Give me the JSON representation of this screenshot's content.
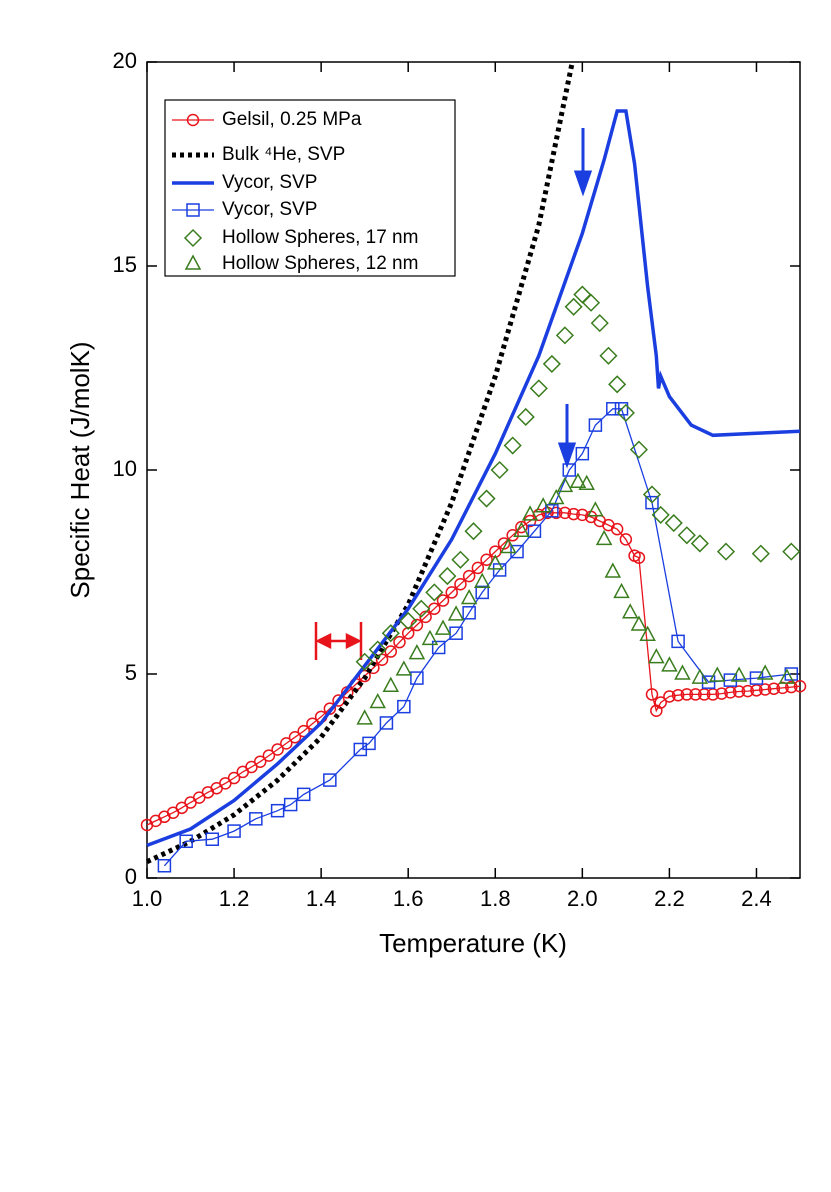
{
  "chart_data": {
    "type": "line",
    "xlabel": "Temperature (K)",
    "ylabel": "Specific Heat  (J/molK)",
    "xlim": [
      1.0,
      2.5
    ],
    "ylim": [
      0,
      20
    ],
    "xticks": [
      {
        "value": 1,
        "label": "1.0"
      },
      1.2,
      1.4,
      1.6,
      1.8,
      {
        "value": 2,
        "label": "2.0"
      },
      2.2,
      2.4
    ],
    "yticks": [
      0,
      5,
      10,
      15,
      20
    ],
    "legend": "upper left",
    "series": [
      {
        "name": "Gelsil, 0.25 MPa",
        "color": "#e8141c",
        "marker": "circle",
        "line": "solid",
        "x": [
          1.0,
          1.02,
          1.04,
          1.06,
          1.08,
          1.1,
          1.12,
          1.14,
          1.16,
          1.18,
          1.2,
          1.22,
          1.24,
          1.26,
          1.28,
          1.3,
          1.32,
          1.34,
          1.36,
          1.38,
          1.4,
          1.42,
          1.44,
          1.46,
          1.48,
          1.5,
          1.52,
          1.54,
          1.56,
          1.58,
          1.6,
          1.62,
          1.64,
          1.66,
          1.68,
          1.7,
          1.72,
          1.74,
          1.76,
          1.78,
          1.8,
          1.82,
          1.84,
          1.86,
          1.88,
          1.9,
          1.92,
          1.94,
          1.96,
          1.98,
          2.0,
          2.02,
          2.04,
          2.06,
          2.08,
          2.1,
          2.12,
          2.13,
          2.16,
          2.17,
          2.18,
          2.2,
          2.22,
          2.24,
          2.26,
          2.28,
          2.3,
          2.32,
          2.34,
          2.36,
          2.38,
          2.4,
          2.42,
          2.44,
          2.46,
          2.48,
          2.5
        ],
        "values": [
          1.3,
          1.4,
          1.5,
          1.6,
          1.72,
          1.85,
          1.97,
          2.1,
          2.2,
          2.32,
          2.45,
          2.6,
          2.72,
          2.85,
          3.0,
          3.15,
          3.3,
          3.45,
          3.6,
          3.78,
          3.95,
          4.15,
          4.35,
          4.55,
          4.75,
          4.95,
          5.15,
          5.35,
          5.55,
          5.78,
          6.0,
          6.2,
          6.4,
          6.6,
          6.8,
          7.0,
          7.2,
          7.4,
          7.6,
          7.8,
          8.0,
          8.2,
          8.4,
          8.6,
          8.75,
          8.9,
          8.95,
          8.95,
          8.95,
          8.92,
          8.9,
          8.85,
          8.75,
          8.65,
          8.55,
          8.3,
          7.9,
          7.85,
          4.5,
          4.1,
          4.3,
          4.45,
          4.48,
          4.5,
          4.5,
          4.5,
          4.5,
          4.52,
          4.55,
          4.57,
          4.58,
          4.6,
          4.62,
          4.64,
          4.66,
          4.68,
          4.7
        ]
      },
      {
        "name": "Bulk ⁴He, SVP",
        "color": "#000000",
        "marker": "none",
        "line": "dotted",
        "x": [
          1.0,
          1.1,
          1.2,
          1.3,
          1.4,
          1.5,
          1.6,
          1.7,
          1.8,
          1.9,
          1.977
        ],
        "values": [
          0.4,
          0.9,
          1.55,
          2.4,
          3.45,
          4.9,
          6.7,
          9.2,
          12.3,
          16.0,
          20.0
        ]
      },
      {
        "name": "Vycor, SVP",
        "color": "#1a3ee0",
        "marker": "none",
        "line": "solid",
        "x": [
          1.0,
          1.1,
          1.2,
          1.3,
          1.4,
          1.5,
          1.6,
          1.7,
          1.8,
          1.9,
          2.0,
          2.05,
          2.08,
          2.1,
          2.12,
          2.15,
          2.17,
          2.175,
          2.18,
          2.2,
          2.25,
          2.3,
          2.4,
          2.5
        ],
        "values": [
          0.8,
          1.2,
          1.9,
          2.8,
          3.8,
          5.2,
          6.6,
          8.3,
          10.4,
          12.8,
          15.8,
          17.6,
          18.8,
          18.8,
          17.5,
          14.5,
          12.8,
          12.0,
          12.3,
          11.8,
          11.1,
          10.85,
          10.9,
          10.95
        ]
      },
      {
        "name": "Vycor, SVP",
        "color": "#1a3ee0",
        "marker": "square",
        "line": "solid",
        "x": [
          1.04,
          1.09,
          1.15,
          1.2,
          1.25,
          1.3,
          1.33,
          1.36,
          1.42,
          1.49,
          1.51,
          1.55,
          1.59,
          1.62,
          1.67,
          1.71,
          1.74,
          1.77,
          1.81,
          1.85,
          1.89,
          1.93,
          1.97,
          2.0,
          2.03,
          2.07,
          2.09,
          2.16,
          2.22,
          2.29,
          2.34,
          2.4,
          2.48
        ],
        "values": [
          0.3,
          0.9,
          0.95,
          1.15,
          1.45,
          1.65,
          1.8,
          2.05,
          2.4,
          3.15,
          3.3,
          3.8,
          4.2,
          4.9,
          5.65,
          6.0,
          6.5,
          7.0,
          7.55,
          8.0,
          8.5,
          9.0,
          10.0,
          10.4,
          11.1,
          11.5,
          11.5,
          9.2,
          5.8,
          4.8,
          4.85,
          4.9,
          5.0
        ]
      },
      {
        "name": "Hollow Spheres, 17 nm",
        "color": "#3a7d1e",
        "marker": "diamond",
        "line": "none",
        "x": [
          1.5,
          1.53,
          1.56,
          1.6,
          1.63,
          1.66,
          1.69,
          1.72,
          1.75,
          1.78,
          1.81,
          1.84,
          1.87,
          1.9,
          1.93,
          1.96,
          1.98,
          2.0,
          2.02,
          2.04,
          2.06,
          2.08,
          2.1,
          2.13,
          2.16,
          2.18,
          2.21,
          2.24,
          2.27,
          2.33,
          2.41,
          2.48
        ],
        "values": [
          5.3,
          5.6,
          6.0,
          6.3,
          6.6,
          7.0,
          7.4,
          7.8,
          8.5,
          9.3,
          10.0,
          10.6,
          11.3,
          12.0,
          12.6,
          13.3,
          14.0,
          14.3,
          14.1,
          13.6,
          12.8,
          12.1,
          11.4,
          10.5,
          9.4,
          8.9,
          8.7,
          8.4,
          8.2,
          8.0,
          7.95,
          8.0
        ]
      },
      {
        "name": "Hollow Spheres, 12 nm",
        "color": "#3a7d1e",
        "marker": "triangle",
        "line": "none",
        "x": [
          1.5,
          1.53,
          1.56,
          1.59,
          1.62,
          1.65,
          1.68,
          1.71,
          1.74,
          1.77,
          1.8,
          1.83,
          1.86,
          1.88,
          1.91,
          1.94,
          1.96,
          1.99,
          2.01,
          2.03,
          2.05,
          2.07,
          2.09,
          2.11,
          2.13,
          2.15,
          2.17,
          2.2,
          2.23,
          2.27,
          2.31,
          2.36,
          2.42,
          2.47
        ],
        "values": [
          3.9,
          4.3,
          4.7,
          5.1,
          5.5,
          5.85,
          6.1,
          6.45,
          6.85,
          7.25,
          7.7,
          8.1,
          8.5,
          8.9,
          9.1,
          9.3,
          9.6,
          9.7,
          9.65,
          9.0,
          8.3,
          7.5,
          7.0,
          6.5,
          6.2,
          5.95,
          5.4,
          5.2,
          5.0,
          4.9,
          4.95,
          4.95,
          5.0,
          4.9
        ]
      }
    ]
  }
}
